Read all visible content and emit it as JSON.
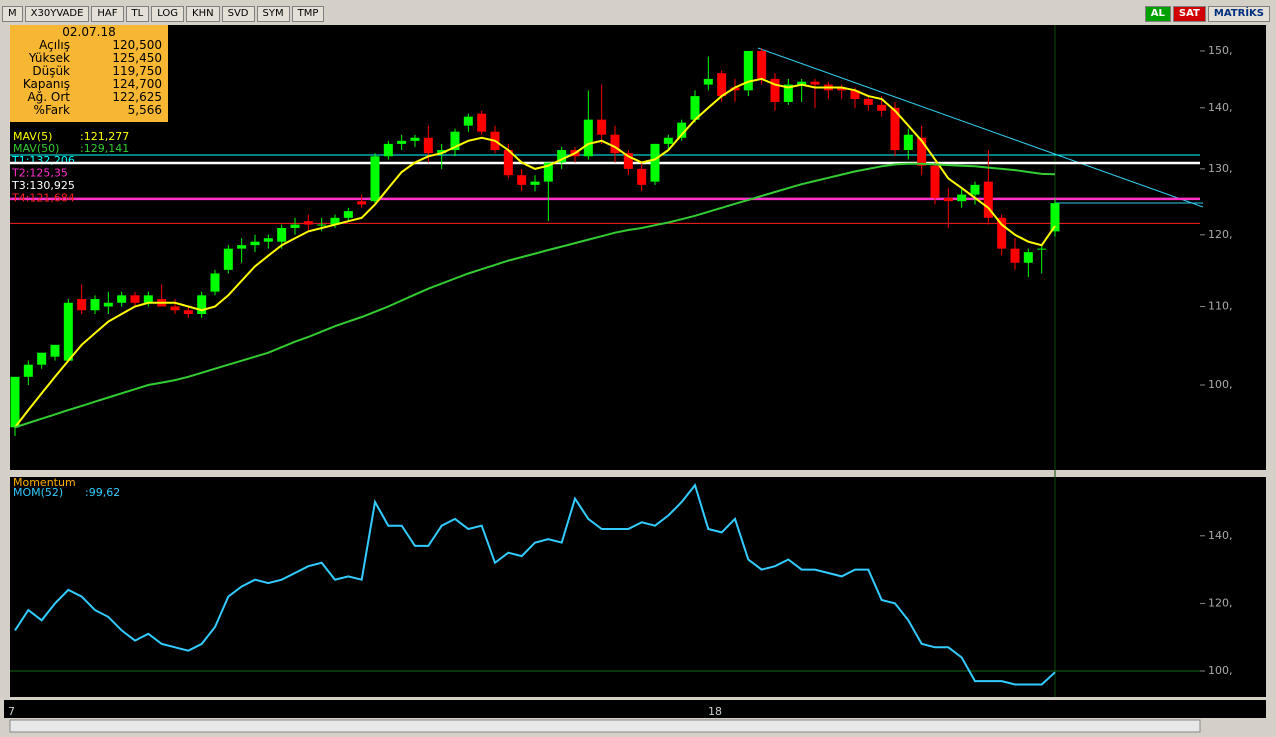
{
  "toolbar": {
    "left": [
      "M",
      "X30YVADE",
      "HAF",
      "TL",
      "LOG",
      "KHN",
      "SVD",
      "SYM",
      "TMP"
    ],
    "buy": "AL",
    "sell": "SAT",
    "brand": "MATRİKS"
  },
  "info_panel": {
    "date": "02.07.18",
    "rows": [
      [
        "Açılış",
        "120,500"
      ],
      [
        "Yüksek",
        "125,450"
      ],
      [
        "Düşük",
        "119,750"
      ],
      [
        "Kapanış",
        "124,700"
      ],
      [
        "Ağ. Ort",
        "122,625"
      ],
      [
        "%Fark",
        "5,566"
      ]
    ]
  },
  "x_labels": [
    "7",
    "18"
  ],
  "chart_data": [
    {
      "type": "candlestick",
      "log_scale": true,
      "ylim": [
        90.2,
        154.8
      ],
      "yticks": [
        {
          "value": 100,
          "label": "100,"
        },
        {
          "value": 110,
          "label": "110,"
        },
        {
          "value": 120,
          "label": "120,"
        },
        {
          "value": 130,
          "label": "130,"
        },
        {
          "value": 140,
          "label": "140,"
        },
        {
          "value": 150,
          "label": "150,"
        }
      ],
      "up_color": "#00ff00",
      "down_color": "#ff0000",
      "candles": [
        [
          95,
          101,
          94,
          101
        ],
        [
          101,
          103,
          100,
          102.5
        ],
        [
          102.5,
          104,
          102,
          104
        ],
        [
          103.5,
          105,
          103,
          105
        ],
        [
          103,
          111,
          103,
          110.5
        ],
        [
          111,
          113,
          109,
          109.5
        ],
        [
          109.5,
          111.5,
          109,
          111
        ],
        [
          110,
          112,
          109,
          110.5
        ],
        [
          110.5,
          112,
          110,
          111.5
        ],
        [
          111.5,
          112,
          110,
          110.5
        ],
        [
          110.5,
          112,
          110,
          111.5
        ],
        [
          111,
          113,
          110,
          110
        ],
        [
          110,
          111,
          109,
          109.5
        ],
        [
          109.5,
          110,
          108.5,
          109
        ],
        [
          109,
          112,
          108.5,
          111.5
        ],
        [
          112,
          115,
          111.5,
          114.5
        ],
        [
          115,
          118.5,
          114.5,
          118
        ],
        [
          118,
          119.5,
          116,
          118.5
        ],
        [
          118.5,
          120,
          117.5,
          119
        ],
        [
          119,
          120,
          118,
          119.5
        ],
        [
          119,
          121.5,
          118,
          121
        ],
        [
          121,
          122.5,
          120,
          121.5
        ],
        [
          122,
          123,
          120.5,
          121.5
        ],
        [
          121.5,
          122.5,
          120.5,
          121.5
        ],
        [
          121.5,
          123,
          121,
          122.5
        ],
        [
          122.5,
          124,
          122,
          123.5
        ],
        [
          125,
          126,
          124,
          124.5
        ],
        [
          125,
          132.5,
          124.5,
          132
        ],
        [
          132,
          134.5,
          131.5,
          134
        ],
        [
          134,
          135.5,
          133,
          134.5
        ],
        [
          134.5,
          135.5,
          133.5,
          135
        ],
        [
          135,
          137,
          131,
          132.5
        ],
        [
          132.5,
          134,
          130,
          133
        ],
        [
          133,
          136.5,
          132,
          136
        ],
        [
          137,
          139,
          136,
          138.5
        ],
        [
          139,
          139.5,
          135.5,
          136
        ],
        [
          136,
          137,
          132.5,
          133
        ],
        [
          133,
          134,
          128.5,
          129
        ],
        [
          129,
          130,
          126.5,
          127.5
        ],
        [
          127.5,
          129,
          126.5,
          128
        ],
        [
          128,
          131,
          122,
          131
        ],
        [
          131,
          133.5,
          130,
          133
        ],
        [
          133,
          133.5,
          131,
          132
        ],
        [
          132,
          143,
          131.5,
          138
        ],
        [
          138,
          144,
          134,
          135.5
        ],
        [
          135.5,
          137,
          131,
          132.5
        ],
        [
          132.5,
          133,
          129,
          130
        ],
        [
          130,
          131,
          126.5,
          127.5
        ],
        [
          128,
          134,
          127.5,
          134
        ],
        [
          134,
          135.5,
          133,
          135
        ],
        [
          135,
          138,
          134.5,
          137.5
        ],
        [
          138,
          143,
          137.5,
          142
        ],
        [
          144,
          149,
          143,
          145
        ],
        [
          146,
          146.5,
          141,
          142
        ],
        [
          143.5,
          145,
          141,
          143
        ],
        [
          143,
          150,
          142,
          150
        ],
        [
          150,
          150.5,
          144,
          145
        ],
        [
          145,
          146,
          139.5,
          141
        ],
        [
          141,
          145,
          140.5,
          144
        ],
        [
          144,
          145,
          141,
          144.5
        ],
        [
          144.5,
          145,
          140,
          144
        ],
        [
          144,
          144.5,
          141.5,
          143
        ],
        [
          143.5,
          144,
          141.5,
          143
        ],
        [
          143,
          143.5,
          140,
          141.5
        ],
        [
          141.5,
          142,
          139.5,
          140.5
        ],
        [
          140.5,
          142,
          138.5,
          139.5
        ],
        [
          140,
          141,
          132,
          133
        ],
        [
          133,
          136.5,
          131.5,
          135.5
        ],
        [
          135,
          137,
          129,
          130.5
        ],
        [
          130.5,
          131,
          124.5,
          125.5
        ],
        [
          125.5,
          127,
          121,
          125
        ],
        [
          125,
          127,
          124,
          126
        ],
        [
          126,
          128,
          124.5,
          127.5
        ],
        [
          128,
          133,
          121.5,
          122.5
        ],
        [
          122.5,
          123,
          117,
          118
        ],
        [
          118,
          119.5,
          115,
          116
        ],
        [
          116,
          118,
          114,
          117.5
        ],
        [
          118,
          118.5,
          114.5,
          118
        ],
        [
          120.5,
          125.45,
          119.75,
          124.7
        ]
      ],
      "series": [
        {
          "name": "MAV(5)",
          "value_label": ":121,277",
          "color": "#ffff00",
          "values": [
            95,
            97,
            99,
            101,
            103,
            105,
            106.5,
            108,
            109,
            110,
            110.5,
            110.5,
            110.5,
            110,
            109.5,
            110,
            111.5,
            113.5,
            115.5,
            117,
            118.5,
            119.5,
            120.5,
            121,
            121.5,
            122,
            122.5,
            124.5,
            127,
            129.5,
            131,
            132,
            132.5,
            133.5,
            134.5,
            135,
            134.5,
            133,
            131,
            130,
            130.5,
            131.5,
            132.5,
            134,
            134.5,
            133.5,
            132,
            131,
            131.5,
            133,
            135.5,
            138,
            140,
            142,
            143.5,
            144.5,
            145,
            144,
            143.5,
            144,
            143.5,
            143.5,
            143.5,
            143,
            142,
            141.5,
            139.5,
            137,
            134.5,
            131.5,
            128.5,
            127,
            125.5,
            124,
            121.5,
            120,
            119,
            118.5,
            121.277
          ]
        },
        {
          "name": "MAV(50)",
          "value_label": ":129,141",
          "color": "#33cc33",
          "values": [
            95,
            95.5,
            96,
            96.5,
            97,
            97.5,
            98,
            98.5,
            99,
            99.5,
            100,
            100.3,
            100.6,
            101,
            101.5,
            102,
            102.5,
            103,
            103.5,
            104,
            104.7,
            105.4,
            106,
            106.7,
            107.4,
            108,
            108.6,
            109.3,
            110,
            110.8,
            111.6,
            112.4,
            113.1,
            113.8,
            114.5,
            115.1,
            115.7,
            116.3,
            116.8,
            117.3,
            117.8,
            118.3,
            118.8,
            119.3,
            119.8,
            120.3,
            120.7,
            121,
            121.4,
            121.8,
            122.3,
            122.8,
            123.4,
            124,
            124.6,
            125.2,
            125.8,
            126.4,
            127,
            127.6,
            128.1,
            128.6,
            129.1,
            129.6,
            130,
            130.4,
            130.7,
            130.8,
            130.8,
            130.7,
            130.6,
            130.5,
            130.4,
            130.2,
            130,
            129.8,
            129.5,
            129.2,
            129.141
          ]
        }
      ],
      "levels": [
        {
          "label": "T1:132,206",
          "value": 132.206,
          "color": "#00ffff"
        },
        {
          "label": "T2:125,35",
          "value": 125.35,
          "color": "#ff33cc"
        },
        {
          "label": "T3:130,925",
          "value": 130.925,
          "color": "#ffffff"
        },
        {
          "label": "T4:121,684",
          "value": 121.684,
          "color": "#ff2020"
        }
      ]
    },
    {
      "type": "line",
      "title": "Momentum",
      "ylim": [
        92.3,
        157.4
      ],
      "yticks": [
        {
          "value": 100,
          "label": "100,"
        },
        {
          "value": 120,
          "label": "120,"
        },
        {
          "value": 140,
          "label": "140,"
        }
      ],
      "hline": 100,
      "series": [
        {
          "name": "MOM(52)",
          "value_label": ":99,62",
          "color": "#33ccff",
          "values": [
            112,
            118,
            115,
            120,
            124,
            122,
            118,
            116,
            112,
            109,
            111,
            108,
            107,
            106,
            108,
            113,
            122,
            125,
            127,
            126,
            127,
            129,
            131,
            132,
            127,
            128,
            127,
            150,
            143,
            143,
            137,
            137,
            143,
            145,
            142,
            143,
            132,
            135,
            134,
            138,
            139,
            138,
            151,
            145,
            142,
            142,
            142,
            144,
            143,
            146,
            150,
            155,
            142,
            141,
            145,
            133,
            130,
            131,
            133,
            130,
            130,
            129,
            128,
            130,
            130,
            121,
            120,
            115,
            108,
            107,
            107,
            104,
            97,
            97,
            97,
            96,
            96,
            96,
            99.62
          ]
        }
      ]
    }
  ]
}
